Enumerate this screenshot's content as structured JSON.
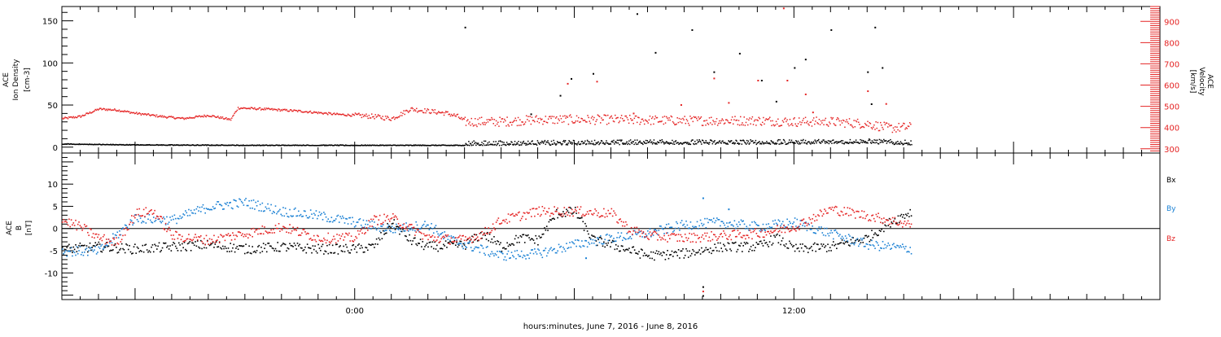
{
  "xlabel": "hours:minutes, June  7, 2016 - June  8, 2016",
  "chart_data": [
    {
      "type": "scatter",
      "panel": "top",
      "ylabel_left": [
        "ACE",
        "Ion Density",
        "[cm-3]"
      ],
      "ylabel_right": [
        "ACE",
        "Velocity",
        "[km/s]"
      ],
      "left_ylim": [
        -7,
        167
      ],
      "left_yticks": [
        0,
        50,
        100,
        150
      ],
      "right_ylim": [
        280,
        970
      ],
      "right_yticks": [
        300,
        400,
        500,
        600,
        700,
        800,
        900
      ],
      "x_range_hours": [
        -8,
        22
      ],
      "x_ticks": [
        {
          "h": 0,
          "label": "0:00"
        },
        {
          "h": 12,
          "label": "12:00"
        }
      ],
      "data_end_hours": 15.2,
      "series": [
        {
          "axis": "left",
          "color": "#000000",
          "baseline": [
            [
              -8,
              4
            ],
            [
              -6,
              3
            ],
            [
              -3,
              2.5
            ],
            [
              1,
              2.5
            ],
            [
              3,
              2.5
            ],
            [
              5,
              3
            ],
            [
              8,
              4
            ],
            [
              10,
              4
            ],
            [
              12,
              4
            ],
            [
              14,
              5
            ],
            [
              15.2,
              3
            ]
          ],
          "spikes": [
            [
              3,
              143
            ],
            [
              5.6,
              62
            ],
            [
              5.9,
              82
            ],
            [
              6.5,
              88
            ],
            [
              7.7,
              159
            ],
            [
              8.2,
              113
            ],
            [
              9.2,
              140
            ],
            [
              9.8,
              90
            ],
            [
              10.5,
              112
            ],
            [
              11.1,
              80
            ],
            [
              12.0,
              95
            ],
            [
              12.3,
              105
            ],
            [
              13.0,
              140
            ],
            [
              14.0,
              90
            ],
            [
              14.2,
              143
            ],
            [
              14.4,
              95
            ],
            [
              4.8,
              40
            ],
            [
              11.5,
              55
            ],
            [
              14.1,
              52
            ]
          ]
        },
        {
          "axis": "right",
          "color": "#e52525",
          "trace": [
            [
              -8,
              445
            ],
            [
              -7.5,
              455
            ],
            [
              -7.0,
              490
            ],
            [
              -6.5,
              485
            ],
            [
              -6.0,
              470
            ],
            [
              -5.3,
              455
            ],
            [
              -4.7,
              445
            ],
            [
              -4.0,
              460
            ],
            [
              -3.4,
              440
            ],
            [
              -3.2,
              495
            ],
            [
              -2.5,
              490
            ],
            [
              -1.5,
              480
            ],
            [
              -0.5,
              465
            ],
            [
              0.5,
              455
            ],
            [
              1.0,
              445
            ],
            [
              1.3,
              470
            ],
            [
              1.5,
              490
            ],
            [
              2.0,
              480
            ],
            [
              2.5,
              470
            ],
            [
              2.8,
              455
            ],
            [
              3.0,
              430
            ],
            [
              4.0,
              430
            ],
            [
              5.0,
              440
            ],
            [
              7.0,
              440
            ],
            [
              9.0,
              435
            ],
            [
              11.0,
              435
            ],
            [
              12.0,
              430
            ],
            [
              13.0,
              430
            ],
            [
              14.0,
              420
            ],
            [
              14.6,
              400
            ],
            [
              15.2,
              405
            ]
          ],
          "spikes": [
            [
              5.8,
              610
            ],
            [
              6.6,
              620
            ],
            [
              9.8,
              635
            ],
            [
              11.0,
              625
            ],
            [
              11.8,
              625
            ],
            [
              12.3,
              560
            ],
            [
              14.0,
              575
            ],
            [
              14.5,
              515
            ],
            [
              12.5,
              475
            ],
            [
              7.6,
              470
            ],
            [
              10.2,
              520
            ],
            [
              8.9,
              510
            ],
            [
              11.7,
              965
            ]
          ]
        }
      ]
    },
    {
      "type": "scatter",
      "panel": "bottom",
      "ylabel_left": [
        "ACE",
        "B",
        "[nT]"
      ],
      "ylim": [
        -16,
        17
      ],
      "yticks": [
        -10,
        -5,
        0,
        5,
        10
      ],
      "x_range_hours": [
        -8,
        22
      ],
      "data_end_hours": 15.2,
      "legend": [
        "Bx",
        "By",
        "Bz"
      ],
      "legend_colors": [
        "#000000",
        "#1a80d4",
        "#e52525"
      ],
      "series": [
        {
          "name": "Bx",
          "color": "#000000",
          "trace": [
            [
              -8,
              -4.5
            ],
            [
              -7,
              -4.0
            ],
            [
              -6,
              -4.5
            ],
            [
              -5,
              -4.0
            ],
            [
              -4,
              -3.5
            ],
            [
              -3,
              -4.5
            ],
            [
              -2,
              -4.0
            ],
            [
              -1,
              -4.5
            ],
            [
              0,
              -4.5
            ],
            [
              0.5,
              -4.0
            ],
            [
              1.0,
              1.5
            ],
            [
              1.5,
              -2.5
            ],
            [
              2.0,
              -4.0
            ],
            [
              3.0,
              -3.5
            ],
            [
              3.5,
              -1.0
            ],
            [
              4.0,
              -4.0
            ],
            [
              4.5,
              -2.0
            ],
            [
              5.0,
              -2.5
            ],
            [
              5.5,
              3.5
            ],
            [
              6.0,
              4.0
            ],
            [
              6.5,
              -2.5
            ],
            [
              7.0,
              -3.5
            ],
            [
              8.0,
              -6.0
            ],
            [
              9.0,
              -5.5
            ],
            [
              10.0,
              -4.0
            ],
            [
              11.0,
              -4.0
            ],
            [
              11.5,
              -2.0
            ],
            [
              12.0,
              -4.5
            ],
            [
              13.0,
              -4.0
            ],
            [
              14.0,
              -2.0
            ],
            [
              14.6,
              1.5
            ],
            [
              15.2,
              4.0
            ]
          ],
          "spikes": [
            [
              9.5,
              -13.0
            ],
            [
              9.5,
              -15.0
            ]
          ]
        },
        {
          "name": "By",
          "color": "#1a80d4",
          "trace": [
            [
              -8,
              -5.0
            ],
            [
              -7,
              -5.0
            ],
            [
              -6,
              2.5
            ],
            [
              -5,
              2.0
            ],
            [
              -4,
              5.0
            ],
            [
              -3,
              6.0
            ],
            [
              -2,
              4.0
            ],
            [
              -1,
              3.0
            ],
            [
              0,
              1.5
            ],
            [
              1,
              0.0
            ],
            [
              2,
              1.0
            ],
            [
              2.5,
              -2.0
            ],
            [
              3.0,
              -3.5
            ],
            [
              4.0,
              -6.0
            ],
            [
              5.0,
              -5.5
            ],
            [
              6.0,
              -3.5
            ],
            [
              7.0,
              -2.0
            ],
            [
              8.0,
              -1.0
            ],
            [
              9.0,
              1.0
            ],
            [
              10.0,
              1.5
            ],
            [
              11.0,
              0.5
            ],
            [
              12.0,
              1.5
            ],
            [
              13.0,
              -1.0
            ],
            [
              14.0,
              -3.5
            ],
            [
              15.2,
              -4.5
            ]
          ],
          "spikes": [
            [
              9.5,
              7.0
            ],
            [
              10.2,
              4.5
            ],
            [
              6.3,
              -6.5
            ]
          ]
        },
        {
          "name": "Bz",
          "color": "#e52525",
          "trace": [
            [
              -8,
              2.0
            ],
            [
              -7.5,
              0.5
            ],
            [
              -7,
              -2.0
            ],
            [
              -6.5,
              -3.0
            ],
            [
              -6,
              3.5
            ],
            [
              -5.5,
              4.0
            ],
            [
              -5,
              -1.5
            ],
            [
              -4,
              -2.5
            ],
            [
              -3,
              -1.0
            ],
            [
              -2,
              0.5
            ],
            [
              -1,
              -2.0
            ],
            [
              0,
              -2.0
            ],
            [
              0.5,
              2.0
            ],
            [
              1.0,
              2.5
            ],
            [
              2.0,
              -2.0
            ],
            [
              3.0,
              -2.5
            ],
            [
              3.5,
              -1.0
            ],
            [
              4.0,
              2.0
            ],
            [
              5.0,
              4.0
            ],
            [
              6.0,
              4.0
            ],
            [
              7.0,
              3.5
            ],
            [
              7.5,
              0.0
            ],
            [
              8.0,
              -1.5
            ],
            [
              9.0,
              -2.0
            ],
            [
              10.0,
              -1.5
            ],
            [
              11.0,
              -1.0
            ],
            [
              12.0,
              0.5
            ],
            [
              13.0,
              4.5
            ],
            [
              14.0,
              3.0
            ],
            [
              15.2,
              1.0
            ]
          ],
          "spikes": [
            [
              9.5,
              -14.0
            ]
          ]
        }
      ]
    }
  ]
}
